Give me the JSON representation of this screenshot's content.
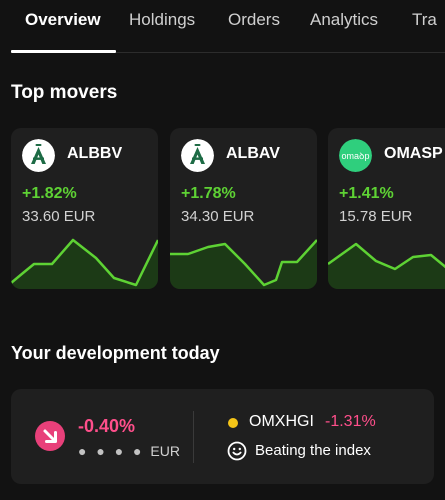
{
  "tabs": [
    {
      "label": "Overview"
    },
    {
      "label": "Holdings"
    },
    {
      "label": "Orders"
    },
    {
      "label": "Analytics"
    },
    {
      "label": "Tra"
    }
  ],
  "top_movers": {
    "title": "Top movers",
    "cards": [
      {
        "ticker": "ALBBV",
        "change": "+1.82%",
        "price": "33.60 EUR",
        "logo_icon": "alandsbanken-logo-icon",
        "logo_bg": "#ffffff",
        "logo_fg": "#1d6b45"
      },
      {
        "ticker": "ALBAV",
        "change": "+1.78%",
        "price": "34.30 EUR",
        "logo_icon": "alandsbanken-logo-icon",
        "logo_bg": "#ffffff",
        "logo_fg": "#1d6b45"
      },
      {
        "ticker": "OMASP",
        "change": "+1.41%",
        "price": "15.78 EUR",
        "logo_icon": "omasp-logo-icon",
        "logo_bg": "#2fcf7d",
        "logo_text": "omaꝺp"
      }
    ]
  },
  "development": {
    "title": "Your development today",
    "change": "-0.40%",
    "amount_masked": "● ● ● ●",
    "currency": "EUR",
    "index_name": "OMXHGI",
    "index_change": "-1.31%",
    "beating_label": "Beating the index",
    "icons": [
      "arrow-down-right-icon",
      "smiley-icon"
    ]
  },
  "colors": {
    "positive": "#5ed234",
    "negative": "#ff4f8b",
    "badge_negative": "#e8407a",
    "index_dot": "#f5c518",
    "card_bg": "#1f1f1f",
    "page_bg": "#121212"
  }
}
